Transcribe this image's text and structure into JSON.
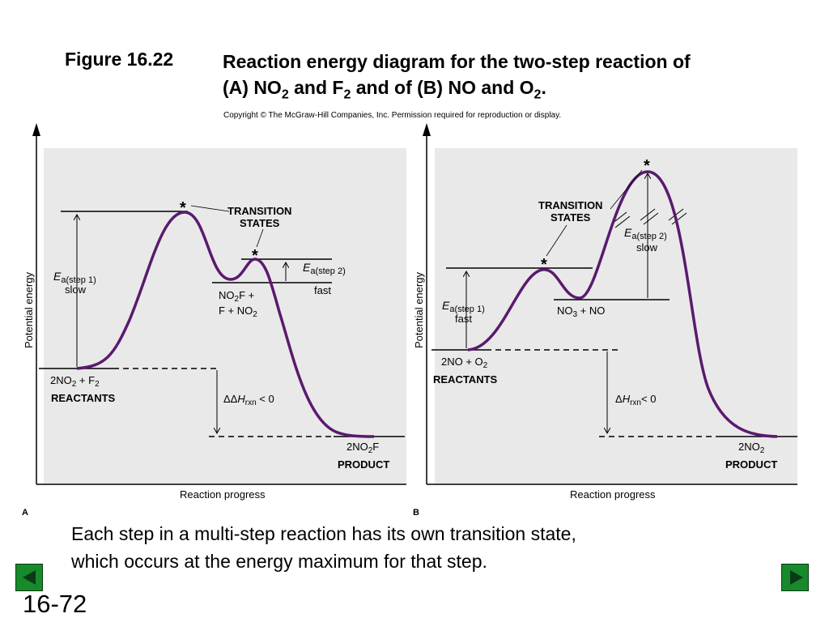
{
  "title": {
    "figure_number": "Figure 16.22",
    "line1": "Reaction energy diagram for the two-step reaction of",
    "line2_a": "(A) NO",
    "line2_b": "2",
    "line2_c": " and F",
    "line2_d": "2",
    "line2_e": " and of (B) NO and O",
    "line2_f": "2",
    "line2_g": "."
  },
  "copyright": "Copyright © The McGraw-Hill Companies, Inc. Permission required for reproduction or display.",
  "panel_a": {
    "letter": "A",
    "y_axis": "Potential energy",
    "x_axis": "Reaction progress",
    "transition_label_1": "TRANSITION",
    "transition_label_2": "STATES",
    "star": "*",
    "ea1_e": "E",
    "ea1_sub": "a(step 1)",
    "ea1_note": "slow",
    "ea2_e": "E",
    "ea2_sub": "a(step 2)",
    "ea2_note": "fast",
    "inter_1a": "NO",
    "inter_1b": "2",
    "inter_1c": "F +",
    "inter_2a": "F + NO",
    "inter_2b": "2",
    "react_a": "2NO",
    "react_b": "2",
    "react_c": " + F",
    "react_d": "2",
    "reactants": "REACTANTS",
    "dh_a": "ΔΔ",
    "dh_b": "H",
    "dh_c": "rxn",
    "dh_d": " < 0",
    "prod_a": "2NO",
    "prod_b": "2",
    "prod_c": "F",
    "product": "PRODUCT"
  },
  "panel_b": {
    "letter": "B",
    "y_axis": "Potential energy",
    "x_axis": "Reaction progress",
    "transition_label_1": "TRANSITION",
    "transition_label_2": "STATES",
    "star": "*",
    "ea1_e": "E",
    "ea1_sub": "a(step 1)",
    "ea1_note": "fast",
    "ea2_e": "E",
    "ea2_sub": "a(step 2)",
    "ea2_note": "slow",
    "inter_a": "NO",
    "inter_b": "3",
    "inter_c": " + NO",
    "react_a": "2NO + O",
    "react_b": "2",
    "reactants": "REACTANTS",
    "dh_a": "Δ",
    "dh_b": "H",
    "dh_c": "rxn",
    "dh_d": "< 0",
    "prod_a": "2NO",
    "prod_b": "2",
    "product": "PRODUCT"
  },
  "caption_line1": "Each step in a multi-step reaction has its own transition state,",
  "caption_line2": "which occurs at the energy maximum for that step.",
  "slide_number": "16-72",
  "colors": {
    "curve": "#5a1a6e",
    "panel_bg": "#e9e9e9",
    "nav_green": "#178a2c"
  }
}
